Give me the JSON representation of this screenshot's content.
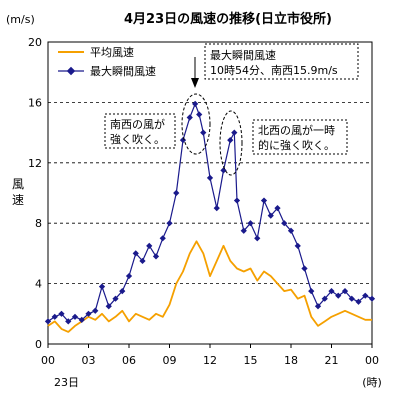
{
  "chart_data": {
    "type": "line",
    "title": "4月23日の風速の推移(日立市役所)",
    "unit_label": "(m/s)",
    "ylabel": "風速",
    "x_date_label": "23日",
    "x_unit_label": "(時)",
    "x_ticks": [
      "00",
      "03",
      "06",
      "09",
      "12",
      "15",
      "18",
      "21",
      "00"
    ],
    "y_ticks": [
      "0",
      "4",
      "8",
      "12",
      "16",
      "20"
    ],
    "xlim": [
      0,
      24
    ],
    "ylim": [
      0,
      20
    ],
    "grid": "horizontal dashed",
    "legend": "top-left",
    "series": [
      {
        "name": "平均風速",
        "color": "#f5a000",
        "x": [
          0,
          0.5,
          1,
          1.5,
          2,
          2.5,
          3,
          3.5,
          4,
          4.5,
          5,
          5.5,
          6,
          6.5,
          7,
          7.5,
          8,
          8.5,
          9,
          9.5,
          10,
          10.5,
          11,
          11.5,
          12,
          12.5,
          13,
          13.5,
          14,
          14.5,
          15,
          15.5,
          16,
          16.5,
          17,
          17.5,
          18,
          18.5,
          19,
          19.5,
          20,
          20.5,
          21,
          21.5,
          22,
          22.5,
          23,
          23.5,
          24
        ],
        "values": [
          1.2,
          1.5,
          1.0,
          0.8,
          1.2,
          1.5,
          1.8,
          1.6,
          2.0,
          1.5,
          1.8,
          2.2,
          1.5,
          2.0,
          1.8,
          1.6,
          2.0,
          1.8,
          2.6,
          4.0,
          4.8,
          6.0,
          6.8,
          6.0,
          4.5,
          5.5,
          6.5,
          5.5,
          5.0,
          4.8,
          5.0,
          4.2,
          4.8,
          4.5,
          4.0,
          3.5,
          3.6,
          3.0,
          3.2,
          1.8,
          1.2,
          1.5,
          1.8,
          2.0,
          2.2,
          2.0,
          1.8,
          1.6,
          1.6
        ]
      },
      {
        "name": "最大瞬間風速",
        "color": "#1a1a8c",
        "x": [
          0,
          0.5,
          1,
          1.5,
          2,
          2.5,
          3,
          3.5,
          4,
          4.5,
          5,
          5.5,
          6,
          6.5,
          7,
          7.5,
          8,
          8.5,
          9,
          9.5,
          10,
          10.5,
          10.9,
          11.2,
          11.5,
          12,
          12.5,
          13,
          13.5,
          13.8,
          14,
          14.5,
          15,
          15.5,
          16,
          16.5,
          17,
          17.5,
          18,
          18.5,
          19,
          19.5,
          20,
          20.5,
          21,
          21.5,
          22,
          22.5,
          23,
          23.5,
          24
        ],
        "values": [
          1.5,
          1.8,
          2.0,
          1.5,
          1.8,
          1.6,
          2.0,
          2.2,
          3.8,
          2.5,
          3.0,
          3.5,
          4.5,
          6.0,
          5.5,
          6.5,
          5.8,
          7.0,
          8.0,
          10.0,
          13.5,
          15.0,
          15.9,
          15.2,
          14.0,
          11.0,
          9.0,
          11.5,
          13.5,
          14.0,
          9.5,
          7.5,
          8.0,
          7.0,
          9.5,
          8.5,
          9.0,
          8.0,
          7.5,
          6.5,
          5.0,
          3.5,
          2.5,
          3.0,
          3.5,
          3.2,
          3.5,
          3.0,
          2.8,
          3.2,
          3.0
        ]
      }
    ],
    "annotations": {
      "peak_lines": [
        "最大瞬間風速",
        "10時54分、南西15.9m/s"
      ],
      "left_lines": [
        "南西の風が",
        "強く吹く。"
      ],
      "right_lines": [
        "北西の風が一時",
        "的に強く吹く。"
      ]
    }
  }
}
